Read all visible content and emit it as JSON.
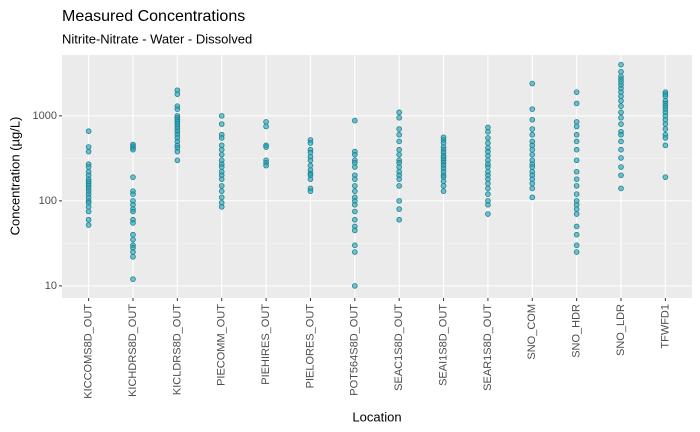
{
  "chart_data": {
    "type": "strip",
    "title": "Measured Concentrations",
    "subtitle": "Nitrite-Nitrate - Water - Dissolved",
    "xlabel": "Location",
    "ylabel": "Concentration (µg/L)",
    "log_y": true,
    "grid": true,
    "color": "#2aa3b5",
    "edge_color": "#17808f",
    "ylim": [
      7.2,
      5200
    ],
    "yticks": [
      10,
      100,
      1000
    ],
    "categories": [
      "KICCOMS8D_OUT",
      "KICHDRS8D_OUT",
      "KICLDRS8D_OUT",
      "PIECOMM_OUT",
      "PIEHIRES_OUT",
      "PIELORES_OUT",
      "POT564S8D_OUT",
      "SEAC1S8D_OUT",
      "SEAI1S8D_OUT",
      "SEAR1S8D_OUT",
      "SNO_COM",
      "SNO_HDR",
      "SNO_LDR",
      "TFWFD1"
    ],
    "values": [
      [
        660,
        430,
        380,
        270,
        250,
        220,
        200,
        180,
        170,
        160,
        150,
        140,
        130,
        120,
        110,
        100,
        95,
        85,
        75,
        60,
        52
      ],
      [
        460,
        440,
        420,
        400,
        190,
        130,
        120,
        100,
        90,
        80,
        75,
        60,
        55,
        40,
        35,
        30,
        28,
        25,
        22,
        12
      ],
      [
        2000,
        1800,
        1300,
        1200,
        1000,
        950,
        900,
        850,
        800,
        750,
        700,
        650,
        600,
        550,
        500,
        450,
        420,
        380,
        300
      ],
      [
        1000,
        800,
        600,
        550,
        450,
        400,
        350,
        300,
        270,
        250,
        220,
        200,
        180,
        150,
        130,
        110,
        95,
        85
      ],
      [
        850,
        750,
        450,
        430,
        300,
        280,
        260
      ],
      [
        520,
        480,
        400,
        370,
        330,
        300,
        260,
        230,
        210,
        200,
        180,
        140,
        130
      ],
      [
        880,
        380,
        350,
        300,
        280,
        250,
        200,
        180,
        150,
        130,
        110,
        100,
        90,
        75,
        60,
        50,
        45,
        30,
        25,
        10
      ],
      [
        1100,
        950,
        700,
        600,
        500,
        400,
        350,
        300,
        280,
        250,
        220,
        200,
        180,
        150,
        100,
        80,
        60
      ],
      [
        560,
        520,
        480,
        430,
        400,
        370,
        340,
        320,
        300,
        280,
        260,
        240,
        220,
        200,
        190,
        170,
        150,
        130
      ],
      [
        730,
        650,
        550,
        480,
        420,
        380,
        340,
        300,
        270,
        250,
        220,
        200,
        180,
        160,
        140,
        120,
        100,
        90,
        70
      ],
      [
        2400,
        1200,
        900,
        700,
        600,
        500,
        450,
        400,
        350,
        300,
        270,
        250,
        220,
        200,
        180,
        160,
        140,
        110
      ],
      [
        1900,
        1400,
        850,
        750,
        600,
        500,
        400,
        300,
        220,
        180,
        150,
        120,
        100,
        90,
        80,
        70,
        50,
        40,
        30,
        25
      ],
      [
        4000,
        3300,
        2900,
        2700,
        2500,
        2300,
        2100,
        1900,
        1700,
        1500,
        1300,
        1100,
        950,
        800,
        650,
        600,
        500,
        400,
        320,
        250,
        200,
        140
      ],
      [
        1900,
        1800,
        1700,
        1500,
        1400,
        1300,
        1200,
        1100,
        1000,
        900,
        800,
        700,
        600,
        550,
        450,
        190
      ]
    ]
  }
}
